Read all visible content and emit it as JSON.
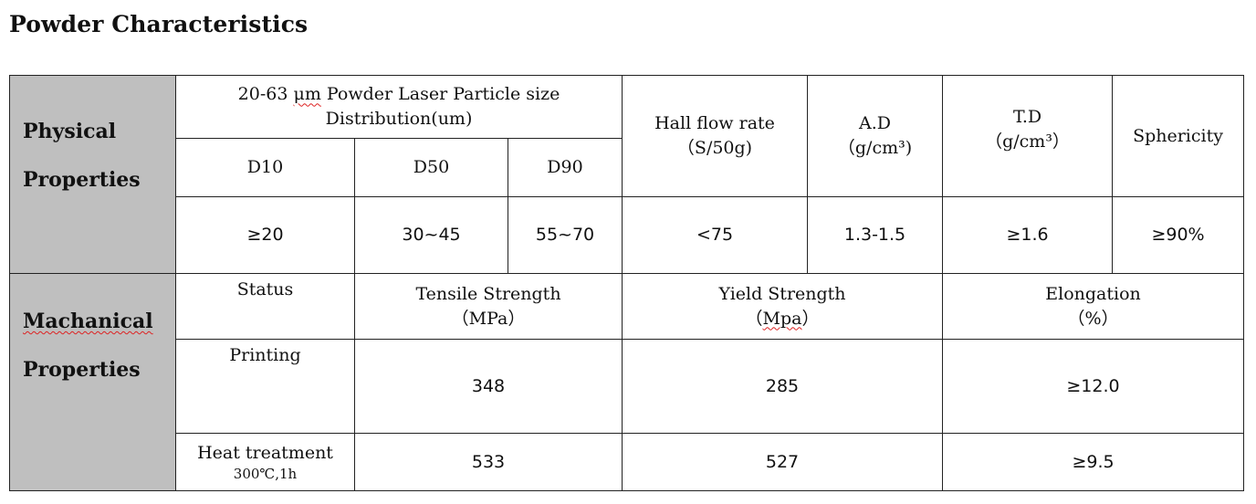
{
  "title": "Powder Characteristics",
  "physical": {
    "label_line1": "Physical",
    "label_line2": "Properties",
    "psd_header_pre": "20-63 ",
    "psd_header_unit": "μm",
    "psd_header_post": " Powder Laser Particle size",
    "psd_header_line2": "Distribution(um)",
    "d10": "D10",
    "d50": "D50",
    "d90": "D90",
    "hall_line1": "Hall flow rate",
    "hall_line2": "（S/50g)",
    "ad_line1": "A.D",
    "ad_line2": "（g/cm³)",
    "td_line1": "T.D",
    "td_line2": "（g/cm³）",
    "sphericity": "Sphericity",
    "values": {
      "d10": "≥20",
      "d50": "30~45",
      "d90": "55~70",
      "hall": "<75",
      "ad": "1.3-1.5",
      "td": "≥1.6",
      "sphericity": "≥90%"
    }
  },
  "mechanical": {
    "label_line1": "Machanical",
    "label_line2": "Properties",
    "status": "Status",
    "tensile_line1": "Tensile Strength",
    "tensile_line2": "（MPa）",
    "yield_line1": "Yield Strength",
    "yield_line2_pre": "（",
    "yield_line2_unit": "Mpa",
    "yield_line2_post": "）",
    "elong_line1": "Elongation",
    "elong_line2": "（%）",
    "rows": [
      {
        "status": "Printing",
        "tensile": "348",
        "yield": "285",
        "elongation": "≥12.0"
      },
      {
        "status": "Heat treatment",
        "status_sub": "300℃,1h",
        "tensile": "533",
        "yield": "527",
        "elongation": "≥9.5"
      }
    ]
  }
}
